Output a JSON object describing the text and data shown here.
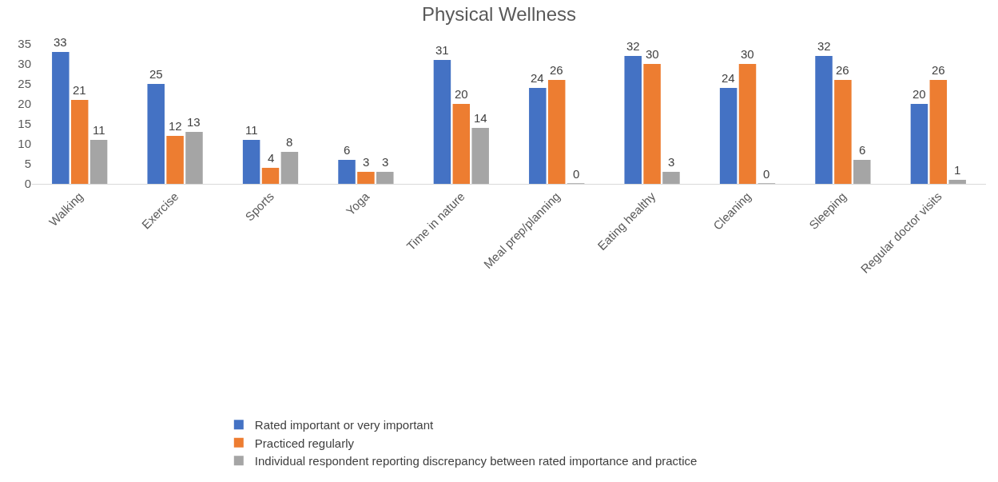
{
  "chart_data": {
    "type": "bar",
    "title": "Physical Wellness",
    "categories": [
      "Walking",
      "Exercise",
      "Sports",
      "Yoga",
      "Time in nature",
      "Meal prep/planning",
      "Eating healthy",
      "Cleaning",
      "Sleeping",
      "Regular doctor visits"
    ],
    "series": [
      {
        "name": "Rated important or very important",
        "color": "#4472c4",
        "values": [
          33,
          25,
          11,
          6,
          31,
          24,
          32,
          24,
          32,
          20
        ]
      },
      {
        "name": "Practiced regularly",
        "color": "#ed7d31",
        "values": [
          21,
          12,
          4,
          3,
          20,
          26,
          30,
          30,
          26,
          26
        ]
      },
      {
        "name": "Individual respondent reporting discrepancy between rated importance and practice",
        "color": "#a5a5a5",
        "values": [
          11,
          13,
          8,
          3,
          14,
          0,
          3,
          0,
          6,
          1
        ]
      }
    ],
    "ylim": [
      0,
      35
    ],
    "yticks": [
      0,
      5,
      10,
      15,
      20,
      25,
      30,
      35
    ],
    "data_labels": true,
    "grid": false,
    "legend": "bottom"
  }
}
